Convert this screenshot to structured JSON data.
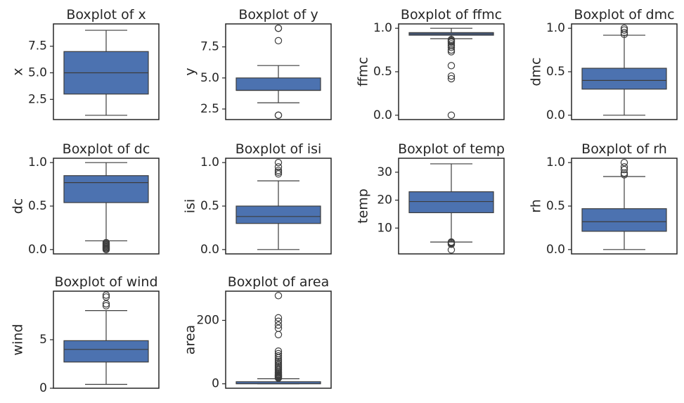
{
  "figure": {
    "box_color": "#4c72b0",
    "line_color": "#3d3d3d",
    "frame_color": "#262626"
  },
  "chart_data": [
    {
      "type": "box",
      "title": "Boxplot of x",
      "ylabel": "x",
      "ylim": [
        0.6,
        9.6
      ],
      "yticks": [
        2.5,
        5.0,
        7.5
      ],
      "ytick_labels": [
        "2.5",
        "5.0",
        "7.5"
      ],
      "stats": {
        "whisker_low": 1,
        "q1": 3,
        "median": 5,
        "q3": 7,
        "whisker_high": 9
      },
      "outliers": []
    },
    {
      "type": "box",
      "title": "Boxplot of y",
      "ylabel": "y",
      "ylim": [
        1.65,
        9.35
      ],
      "yticks": [
        2.5,
        5.0,
        7.5
      ],
      "ytick_labels": [
        "2.5",
        "5.0",
        "7.5"
      ],
      "stats": {
        "whisker_low": 3,
        "q1": 4,
        "median": 4,
        "q3": 5,
        "whisker_high": 6
      },
      "outliers": [
        2,
        2,
        8,
        9,
        9
      ]
    },
    {
      "type": "box",
      "title": "Boxplot of ffmc",
      "ylabel": "ffmc",
      "ylim": [
        -0.05,
        1.05
      ],
      "yticks": [
        0.0,
        0.5,
        1.0
      ],
      "ytick_labels": [
        "0.0",
        "0.5",
        "1.0"
      ],
      "stats": {
        "whisker_low": 0.88,
        "q1": 0.92,
        "median": 0.935,
        "q3": 0.95,
        "whisker_high": 1.0
      },
      "outliers": [
        0.0,
        0.42,
        0.45,
        0.57,
        0.73,
        0.75,
        0.78,
        0.8,
        0.82,
        0.84,
        0.85,
        0.86,
        0.87
      ]
    },
    {
      "type": "box",
      "title": "Boxplot of dmc",
      "ylabel": "dmc",
      "ylim": [
        -0.05,
        1.05
      ],
      "yticks": [
        0.0,
        0.5,
        1.0
      ],
      "ytick_labels": [
        "0.0",
        "0.5",
        "1.0"
      ],
      "stats": {
        "whisker_low": 0.0,
        "q1": 0.3,
        "median": 0.4,
        "q3": 0.54,
        "whisker_high": 0.92
      },
      "outliers": [
        0.93,
        0.95,
        0.98,
        1.0
      ]
    },
    {
      "type": "box",
      "title": "Boxplot of dc",
      "ylabel": "dc",
      "ylim": [
        -0.05,
        1.05
      ],
      "yticks": [
        0.0,
        0.5,
        1.0
      ],
      "ytick_labels": [
        "0.0",
        "0.5",
        "1.0"
      ],
      "stats": {
        "whisker_low": 0.1,
        "q1": 0.54,
        "median": 0.77,
        "q3": 0.85,
        "whisker_high": 1.0
      },
      "outliers": [
        0.0,
        0.01,
        0.02,
        0.03,
        0.04,
        0.05,
        0.06,
        0.07,
        0.08
      ]
    },
    {
      "type": "box",
      "title": "Boxplot of isi",
      "ylabel": "isi",
      "ylim": [
        -0.05,
        1.05
      ],
      "yticks": [
        0.0,
        0.5,
        1.0
      ],
      "ytick_labels": [
        "0.0",
        "0.5",
        "1.0"
      ],
      "stats": {
        "whisker_low": 0.0,
        "q1": 0.3,
        "median": 0.38,
        "q3": 0.5,
        "whisker_high": 0.79
      },
      "outliers": [
        0.87,
        0.89,
        0.91,
        0.95,
        1.0
      ]
    },
    {
      "type": "box",
      "title": "Boxplot of temp",
      "ylabel": "temp",
      "ylim": [
        0.75,
        35.0
      ],
      "yticks": [
        10,
        20,
        30
      ],
      "ytick_labels": [
        "10",
        "20",
        "30"
      ],
      "stats": {
        "whisker_low": 5,
        "q1": 15.5,
        "median": 19.5,
        "q3": 23,
        "whisker_high": 33
      },
      "outliers": [
        2.2,
        4.2,
        4.6,
        4.8,
        5.0
      ]
    },
    {
      "type": "box",
      "title": "Boxplot of rh",
      "ylabel": "rh",
      "ylim": [
        -0.05,
        1.05
      ],
      "yticks": [
        0.0,
        0.5,
        1.0
      ],
      "ytick_labels": [
        "0.0",
        "0.5",
        "1.0"
      ],
      "stats": {
        "whisker_low": 0.0,
        "q1": 0.21,
        "median": 0.32,
        "q3": 0.47,
        "whisker_high": 0.84
      },
      "outliers": [
        0.86,
        0.88,
        0.92,
        0.95,
        1.0
      ]
    },
    {
      "type": "box",
      "title": "Boxplot of wind",
      "ylabel": "wind",
      "ylim": [
        0.0,
        10.0
      ],
      "yticks": [
        0,
        5
      ],
      "ytick_labels": [
        "0",
        "5"
      ],
      "stats": {
        "whisker_low": 0.4,
        "q1": 2.7,
        "median": 4.0,
        "q3": 4.9,
        "whisker_high": 8.0
      },
      "outliers": [
        8.5,
        8.7,
        9.4,
        9.6
      ]
    },
    {
      "type": "box",
      "title": "Boxplot of area",
      "ylabel": "area",
      "ylim": [
        -14,
        292
      ],
      "yticks": [
        0,
        200
      ],
      "ytick_labels": [
        "0",
        "200"
      ],
      "stats": {
        "whisker_low": 0,
        "q1": 0,
        "median": 0.5,
        "q3": 6.5,
        "whisker_high": 16
      },
      "outliers": [
        18,
        20,
        22,
        24,
        26,
        28,
        30,
        33,
        36,
        40,
        44,
        48,
        52,
        56,
        60,
        65,
        70,
        75,
        82,
        88,
        95,
        103,
        155,
        175,
        185,
        197,
        208,
        278
      ]
    }
  ]
}
